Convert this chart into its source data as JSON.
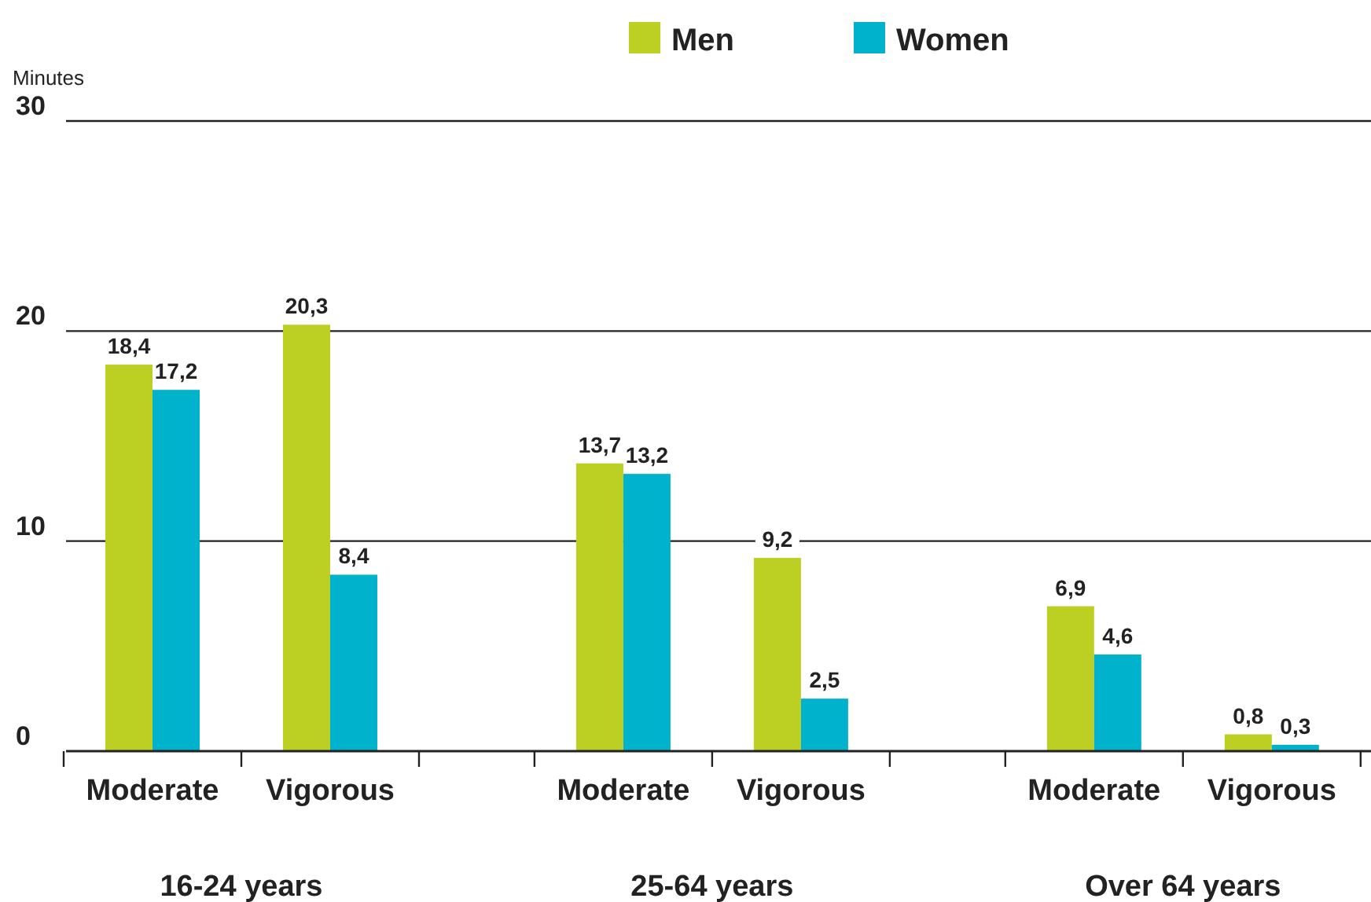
{
  "chart_data": {
    "type": "bar",
    "ylabel": "Minutes",
    "categories": [
      "Moderate",
      "Vigorous",
      "Moderate",
      "Vigorous",
      "Moderate",
      "Vigorous"
    ],
    "series": [
      {
        "name": "Men",
        "color": "#bccf23",
        "values": [
          18.4,
          20.3,
          13.7,
          9.2,
          6.9,
          0.8
        ],
        "value_labels": [
          "18,4",
          "20,3",
          "13,7",
          "9,2",
          "6,9",
          "0,8"
        ]
      },
      {
        "name": "Women",
        "color": "#00b2cb",
        "values": [
          17.2,
          8.4,
          13.2,
          2.5,
          4.6,
          0.3
        ],
        "value_labels": [
          "17,2",
          "8,4",
          "13,2",
          "2,5",
          "4,6",
          "0,3"
        ]
      }
    ],
    "annotations": [
      "16-24 years",
      "25-64 years",
      "Over 64 years"
    ],
    "ylim": [
      0,
      30
    ],
    "yticks": [
      0,
      10,
      20,
      30
    ],
    "grid": "y",
    "legend": "top"
  }
}
